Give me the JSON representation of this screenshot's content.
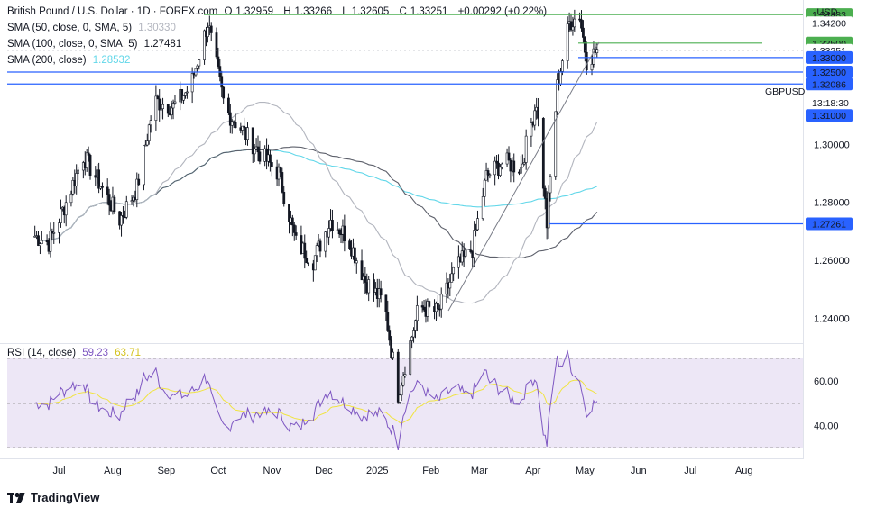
{
  "header": {
    "symbol_title": "British Pound / U.S. Dollar · 1D · FOREX.com",
    "open_label": "O",
    "open": "1.32959",
    "high_label": "H",
    "high": "1.33266",
    "low_label": "L",
    "low": "1.32605",
    "close_label": "C",
    "close": "1.33251",
    "change": "+0.00292 (+0.22%)"
  },
  "indicators": [
    {
      "label": "SMA (50, close, 0, SMA, 5)",
      "value": "1.30330",
      "color": "#b2b5be"
    },
    {
      "label": "SMA (100, close, 0, SMA, 5)",
      "value": "1.27481",
      "color": "#5d606b"
    },
    {
      "label": "SMA (200, close)",
      "value": "1.28532",
      "color": "#62d7e9"
    }
  ],
  "currency_button": "USD",
  "symbol_tag": "GBPUSD",
  "countdown": "13:18:30",
  "price_axis": [
    "1.30000",
    "1.28000",
    "1.26000",
    "1.24000"
  ],
  "price_tags": [
    {
      "text": "1.34483",
      "value": 1.34483,
      "bg": "#4caf50",
      "fg": "#131722"
    },
    {
      "text": "1.34200",
      "value": 1.342,
      "bg": "#ffffff",
      "fg": "#131722"
    },
    {
      "text": "1.33500",
      "value": 1.335,
      "bg": "#4caf50",
      "fg": "#131722"
    },
    {
      "text": "1.33251",
      "value": 1.33251,
      "bg": "#ffffff",
      "fg": "#131722"
    },
    {
      "text": "1.33000",
      "value": 1.33,
      "bg": "#2962ff",
      "fg": "#131722"
    },
    {
      "text": "1.32500",
      "value": 1.325,
      "bg": "#2962ff",
      "fg": "#131722"
    },
    {
      "text": "1.32086",
      "value": 1.32086,
      "bg": "#2962ff",
      "fg": "#131722"
    },
    {
      "text": "1.31000",
      "value": 1.31,
      "bg": "#2962ff",
      "fg": "#131722"
    },
    {
      "text": "1.27261",
      "value": 1.27261,
      "bg": "#2962ff",
      "fg": "#131722"
    }
  ],
  "rsi": {
    "label": "RSI (14, close)",
    "value": "59.23",
    "signal_value": "63.71",
    "axis": [
      "60.00",
      "40.00"
    ],
    "line_color": "#7e57c2",
    "signal_color": "#f0e442",
    "band_color": "#ede7f6"
  },
  "time_axis": [
    "Jul",
    "Aug",
    "Sep",
    "Oct",
    "Nov",
    "Dec",
    "2025",
    "Feb",
    "Mar",
    "Apr",
    "May",
    "Jun",
    "Jul",
    "Aug"
  ],
  "branding": "TradingView",
  "chart_data": {
    "type": "candlestick",
    "title": "British Pound / U.S. Dollar · 1D · FOREX.com",
    "ylim": [
      1.2333,
      1.3483
    ],
    "x_range": [
      "Jun 2024",
      "Aug 2025"
    ],
    "closes": [
      {
        "date": "2024-06-15",
        "close": 1.269
      },
      {
        "date": "2024-06-25",
        "close": 1.266
      },
      {
        "date": "2024-07-05",
        "close": 1.28
      },
      {
        "date": "2024-07-15",
        "close": 1.296
      },
      {
        "date": "2024-07-25",
        "close": 1.286
      },
      {
        "date": "2024-08-05",
        "close": 1.274
      },
      {
        "date": "2024-08-15",
        "close": 1.285
      },
      {
        "date": "2024-08-25",
        "close": 1.315
      },
      {
        "date": "2024-09-05",
        "close": 1.313
      },
      {
        "date": "2024-09-15",
        "close": 1.32
      },
      {
        "date": "2024-09-25",
        "close": 1.342
      },
      {
        "date": "2024-10-05",
        "close": 1.312
      },
      {
        "date": "2024-10-15",
        "close": 1.305
      },
      {
        "date": "2024-10-25",
        "close": 1.297
      },
      {
        "date": "2024-11-05",
        "close": 1.29
      },
      {
        "date": "2024-11-15",
        "close": 1.266
      },
      {
        "date": "2024-11-25",
        "close": 1.26
      },
      {
        "date": "2024-12-05",
        "close": 1.274
      },
      {
        "date": "2024-12-15",
        "close": 1.268
      },
      {
        "date": "2024-12-25",
        "close": 1.253
      },
      {
        "date": "2025-01-05",
        "close": 1.245
      },
      {
        "date": "2025-01-13",
        "close": 1.214
      },
      {
        "date": "2025-01-25",
        "close": 1.244
      },
      {
        "date": "2025-02-05",
        "close": 1.242
      },
      {
        "date": "2025-02-15",
        "close": 1.257
      },
      {
        "date": "2025-02-25",
        "close": 1.264
      },
      {
        "date": "2025-03-05",
        "close": 1.289
      },
      {
        "date": "2025-03-15",
        "close": 1.294
      },
      {
        "date": "2025-03-25",
        "close": 1.292
      },
      {
        "date": "2025-04-03",
        "close": 1.315
      },
      {
        "date": "2025-04-09",
        "close": 1.2726
      },
      {
        "date": "2025-04-15",
        "close": 1.32
      },
      {
        "date": "2025-04-22",
        "close": 1.342
      },
      {
        "date": "2025-04-28",
        "close": 1.3448
      },
      {
        "date": "2025-05-02",
        "close": 1.329
      },
      {
        "date": "2025-05-08",
        "close": 1.3325
      }
    ],
    "series": [
      {
        "name": "SMA (50, close, 0, SMA, 5)",
        "last": 1.3033
      },
      {
        "name": "SMA (100, close, 0, SMA, 5)",
        "last": 1.27481
      },
      {
        "name": "SMA (200, close)",
        "last": 1.28532
      }
    ],
    "horizontal_levels": [
      1.34483,
      1.335,
      1.33,
      1.325,
      1.32086,
      1.31,
      1.27261
    ],
    "grid": false
  }
}
